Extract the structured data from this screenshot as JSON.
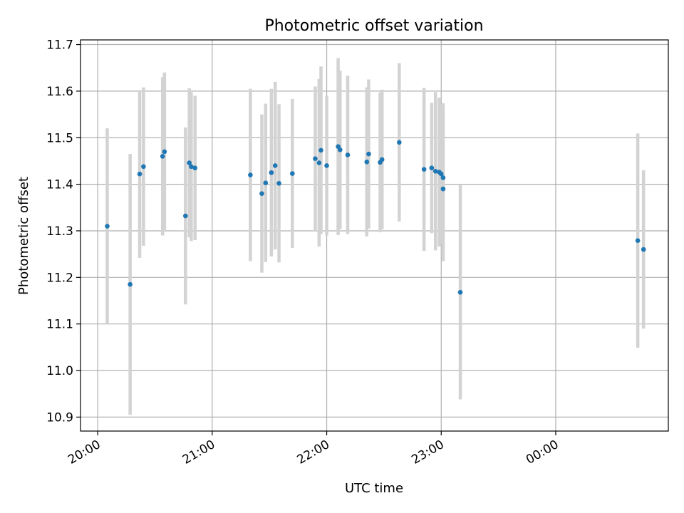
{
  "chart_data": {
    "type": "scatter",
    "title": "Photometric offset variation",
    "xlabel": "UTC time",
    "ylabel": "Photometric offset",
    "grid": true,
    "ylim": [
      10.87,
      11.71
    ],
    "xlim": [
      "19:51",
      "00:59"
    ],
    "x_ticks": [
      "20:00",
      "21:00",
      "22:00",
      "23:00",
      "00:00"
    ],
    "y_ticks": [
      "10.9",
      "11.0",
      "11.1",
      "11.2",
      "11.3",
      "11.4",
      "11.5",
      "11.6",
      "11.7"
    ],
    "y_tick_values": [
      10.9,
      11.0,
      11.1,
      11.2,
      11.3,
      11.4,
      11.5,
      11.6,
      11.7
    ],
    "colors": {
      "point": "#1f77b4",
      "errorbar": "#d3d3d3",
      "grid": "#b0b0b0"
    },
    "series": [
      {
        "x": [
          "20:05",
          "20:17",
          "20:22",
          "20:24",
          "20:34",
          "20:35",
          "20:46",
          "20:48",
          "20:49",
          "20:51",
          "21:20",
          "21:26",
          "21:28",
          "21:31",
          "21:33",
          "21:35",
          "21:42",
          "21:54",
          "21:56",
          "21:57",
          "22:00",
          "22:06",
          "22:07",
          "22:11",
          "22:21",
          "22:22",
          "22:28",
          "22:29",
          "22:38",
          "22:51",
          "22:55",
          "22:57",
          "22:59",
          "23:00",
          "23:01",
          "23:01",
          "23:10",
          "00:43",
          "00:46"
        ],
        "y": [
          11.31,
          11.185,
          11.422,
          11.438,
          11.46,
          11.47,
          11.332,
          11.446,
          11.438,
          11.435,
          11.42,
          11.38,
          11.403,
          11.425,
          11.44,
          11.402,
          11.423,
          11.455,
          11.446,
          11.473,
          11.44,
          11.481,
          11.474,
          11.463,
          11.448,
          11.465,
          11.447,
          11.453,
          11.49,
          11.432,
          11.435,
          11.428,
          11.426,
          11.422,
          11.414,
          11.39,
          11.168,
          11.279,
          11.26
        ],
        "err": [
          0.21,
          0.28,
          0.18,
          0.17,
          0.17,
          0.17,
          0.19,
          0.16,
          0.16,
          0.155,
          0.185,
          0.17,
          0.17,
          0.18,
          0.18,
          0.17,
          0.16,
          0.155,
          0.18,
          0.18,
          0.15,
          0.19,
          0.17,
          0.17,
          0.16,
          0.16,
          0.15,
          0.15,
          0.17,
          0.175,
          0.14,
          0.17,
          0.16,
          0.15,
          0.16,
          0.155,
          0.23,
          0.23,
          0.17
        ]
      }
    ]
  }
}
